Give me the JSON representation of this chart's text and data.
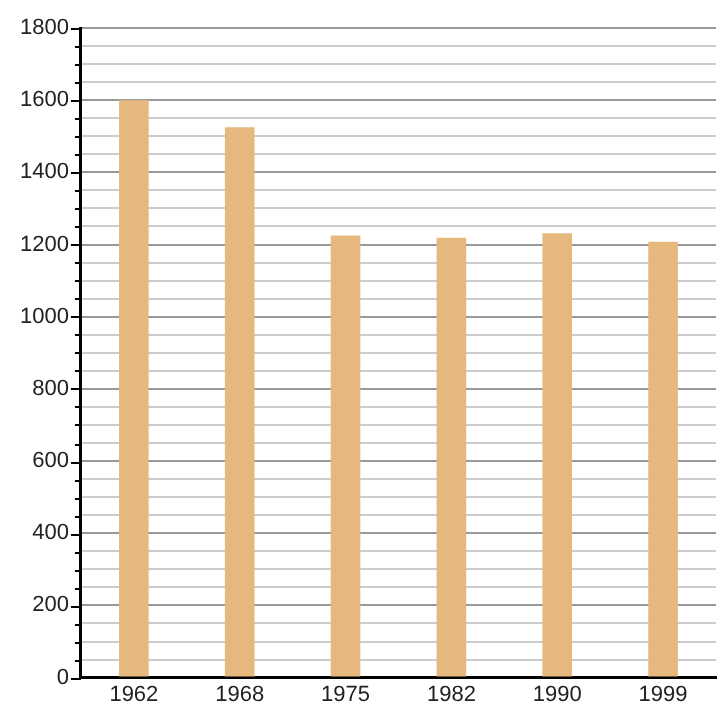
{
  "chart_data": {
    "type": "bar",
    "categories": [
      "1962",
      "1968",
      "1975",
      "1982",
      "1990",
      "1999"
    ],
    "values": [
      1600,
      1525,
      1225,
      1219,
      1231,
      1208
    ],
    "color": "#e6b87e",
    "ylim": [
      0,
      1800
    ],
    "yticks": [
      0,
      {
        "value": 50,
        "label": null
      },
      {
        "value": 100,
        "label": null
      },
      {
        "value": 150,
        "label": null
      },
      200,
      {
        "value": 250,
        "label": null
      },
      {
        "value": 300,
        "label": null
      },
      {
        "value": 350,
        "label": null
      },
      400,
      {
        "value": 450,
        "label": null
      },
      {
        "value": 500,
        "label": null
      },
      {
        "value": 550,
        "label": null
      },
      600,
      {
        "value": 650,
        "label": null
      },
      {
        "value": 700,
        "label": null
      },
      {
        "value": 750,
        "label": null
      },
      800,
      {
        "value": 850,
        "label": null
      },
      {
        "value": 900,
        "label": null
      },
      {
        "value": 950,
        "label": null
      },
      1000,
      {
        "value": 1050,
        "label": null
      },
      {
        "value": 1100,
        "label": null
      },
      {
        "value": 1150,
        "label": null
      },
      1200,
      {
        "value": 1250,
        "label": null
      },
      {
        "value": 1300,
        "label": null
      },
      {
        "value": 1350,
        "label": null
      },
      1400,
      {
        "value": 1450,
        "label": null
      },
      {
        "value": 1500,
        "label": null
      },
      {
        "value": 1550,
        "label": null
      },
      1600,
      {
        "value": 1650,
        "label": null
      },
      {
        "value": 1700,
        "label": null
      },
      {
        "value": 1750,
        "label": null
      },
      1800
    ],
    "grid": "y",
    "legend": false
  }
}
